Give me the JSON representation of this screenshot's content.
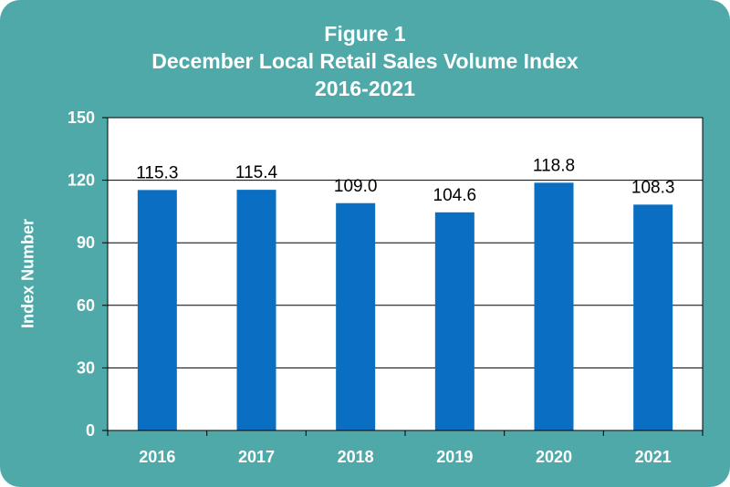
{
  "chart_data": {
    "type": "bar",
    "title_lines": [
      "Figure 1",
      "December Local Retail Sales Volume Index",
      "2016-2021"
    ],
    "xlabel": "",
    "ylabel": "Index Number",
    "categories": [
      "2016",
      "2017",
      "2018",
      "2019",
      "2020",
      "2021"
    ],
    "values": [
      115.3,
      115.4,
      109.0,
      104.6,
      118.8,
      108.3
    ],
    "data_labels": [
      "115.3",
      "115.4",
      "109.0",
      "104.6",
      "118.8",
      "108.3"
    ],
    "ylim": [
      0,
      150
    ],
    "yticks": [
      "0",
      "30",
      "60",
      "90",
      "120",
      "150"
    ],
    "grid": true,
    "legend": "none",
    "colors": {
      "frame": "#4fa9a9",
      "plot_background": "#ffffff",
      "bar": "#0a6fc2",
      "gridline": "#000000",
      "text_light": "#ffffff",
      "text_dark": "#000000"
    }
  }
}
